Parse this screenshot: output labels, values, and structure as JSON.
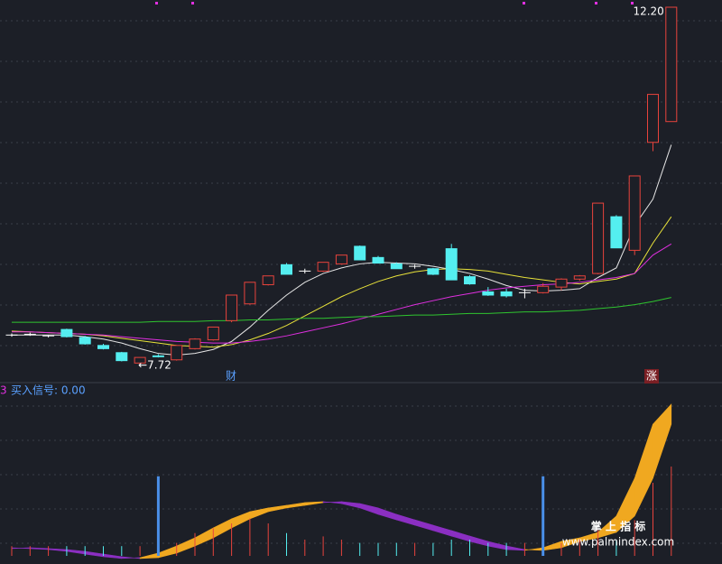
{
  "chart_data": {
    "type": "candlestick",
    "max_label": "12.20",
    "min_label": "←7.72",
    "badge_left": "财",
    "badge_right": "涨",
    "ylim": [
      7.6,
      12.2
    ],
    "up_color": "#e8433c",
    "down_color": "#54eef0",
    "doji_color": "#ffffff",
    "open": [
      8.1,
      8.11,
      8.09,
      8.17,
      8.07,
      7.97,
      7.88,
      7.75,
      7.84,
      7.79,
      7.93,
      8.04,
      8.28,
      8.49,
      8.73,
      8.98,
      8.9,
      8.9,
      8.99,
      9.21,
      9.07,
      8.99,
      8.96,
      8.93,
      9.18,
      8.83,
      8.64,
      8.64,
      8.63,
      8.63,
      8.7,
      8.8,
      8.87,
      9.58,
      9.16,
      10.51,
      10.77
    ],
    "high": [
      8.12,
      8.13,
      8.1,
      8.18,
      8.09,
      7.99,
      7.89,
      7.82,
      7.86,
      7.97,
      8.06,
      8.2,
      8.6,
      8.76,
      8.84,
      9.0,
      8.93,
      9.01,
      9.1,
      9.22,
      9.09,
      9.01,
      8.98,
      8.94,
      9.24,
      8.85,
      8.7,
      8.68,
      8.68,
      8.75,
      8.81,
      8.85,
      9.75,
      9.6,
      10.09,
      11.11,
      12.2
    ],
    "low": [
      8.08,
      8.09,
      8.07,
      8.07,
      7.98,
      7.92,
      7.77,
      7.72,
      7.82,
      7.78,
      7.92,
      8.03,
      8.26,
      8.48,
      8.72,
      8.86,
      8.87,
      8.89,
      8.98,
      9.04,
      9.0,
      8.93,
      8.93,
      8.85,
      8.79,
      8.73,
      8.59,
      8.57,
      8.56,
      8.62,
      8.66,
      8.78,
      8.86,
      9.19,
      9.1,
      10.4,
      10.77
    ],
    "close": [
      8.1,
      8.11,
      8.09,
      8.08,
      7.99,
      7.93,
      7.78,
      7.82,
      7.83,
      7.97,
      8.05,
      8.2,
      8.6,
      8.76,
      8.84,
      8.86,
      8.9,
      9.01,
      9.1,
      9.04,
      9.0,
      8.93,
      8.96,
      8.86,
      8.79,
      8.74,
      8.6,
      8.59,
      8.63,
      8.71,
      8.8,
      8.84,
      9.75,
      9.19,
      10.09,
      11.11,
      12.2
    ],
    "ma": [
      {
        "color": "#e6e6e6",
        "values": [
          8.1,
          8.1,
          8.1,
          8.1,
          8.08,
          8.05,
          8.0,
          7.93,
          7.87,
          7.85,
          7.87,
          7.92,
          8.02,
          8.2,
          8.41,
          8.6,
          8.76,
          8.87,
          8.94,
          8.99,
          9.01,
          9.0,
          8.99,
          8.96,
          8.92,
          8.87,
          8.8,
          8.72,
          8.66,
          8.65,
          8.66,
          8.68,
          8.82,
          8.94,
          9.47,
          9.8,
          10.48
        ]
      },
      {
        "color": "#e8e23a",
        "values": [
          8.15,
          8.14,
          8.13,
          8.12,
          8.11,
          8.09,
          8.06,
          8.03,
          8.0,
          7.97,
          7.96,
          7.95,
          7.98,
          8.04,
          8.12,
          8.22,
          8.34,
          8.46,
          8.58,
          8.68,
          8.77,
          8.84,
          8.89,
          8.92,
          8.93,
          8.92,
          8.9,
          8.86,
          8.82,
          8.79,
          8.76,
          8.74,
          8.77,
          8.8,
          8.87,
          9.25,
          9.58
        ]
      },
      {
        "color": "#e02fe0",
        "values": [
          8.14,
          8.14,
          8.13,
          8.12,
          8.11,
          8.1,
          8.08,
          8.06,
          8.04,
          8.02,
          8.01,
          8.0,
          8.0,
          8.02,
          8.05,
          8.09,
          8.14,
          8.19,
          8.24,
          8.3,
          8.36,
          8.42,
          8.48,
          8.53,
          8.58,
          8.62,
          8.66,
          8.69,
          8.71,
          8.73,
          8.74,
          8.76,
          8.79,
          8.82,
          8.87,
          9.1,
          9.24
        ]
      },
      {
        "color": "#2fc52f",
        "values": [
          8.26,
          8.26,
          8.26,
          8.26,
          8.26,
          8.26,
          8.26,
          8.26,
          8.27,
          8.27,
          8.27,
          8.28,
          8.28,
          8.29,
          8.29,
          8.3,
          8.31,
          8.31,
          8.32,
          8.33,
          8.33,
          8.34,
          8.35,
          8.35,
          8.36,
          8.37,
          8.37,
          8.38,
          8.39,
          8.39,
          8.4,
          8.41,
          8.43,
          8.45,
          8.48,
          8.52,
          8.57
        ]
      }
    ],
    "indicator": {
      "index_label": "3",
      "signal_label": "买入信号: 0.00",
      "ylim": [
        -5,
        100
      ],
      "rise_color": "#f0a820",
      "fall_color": "#8b2fc2",
      "buy_color": "#4a8fe8",
      "series": [
        {
          "values": [
            5.0,
            4.5,
            3.9,
            2.8,
            1.1,
            -0.5,
            -1.6,
            -1.1,
            1.7,
            6.1,
            11.1,
            17.2,
            22.8,
            27.2,
            29.5,
            31.1,
            32.8,
            33.4,
            32.2,
            29.5,
            25.6,
            22.2,
            18.9,
            15.6,
            12.2,
            8.9,
            6.1,
            3.9,
            3.4,
            5.0,
            8.9,
            11.1,
            14.5,
            24.5,
            47.8,
            81.1,
            93.4
          ]
        },
        {
          "values": [
            4.5,
            5.0,
            4.5,
            3.9,
            2.8,
            1.1,
            -0.5,
            -1.6,
            -1.1,
            1.7,
            6.1,
            11.1,
            17.2,
            22.8,
            27.2,
            29.5,
            31.1,
            32.8,
            33.4,
            32.2,
            29.5,
            25.6,
            22.2,
            18.9,
            15.6,
            12.2,
            8.9,
            6.1,
            3.9,
            3.4,
            5.0,
            8.9,
            11.1,
            14.5,
            24.5,
            47.8,
            81.1
          ]
        }
      ],
      "bars": [
        6,
        6,
        6,
        6,
        6,
        6,
        6,
        6,
        6,
        8,
        14,
        17,
        20,
        23,
        20,
        14,
        10,
        12,
        10,
        8,
        8,
        8,
        8,
        8,
        10,
        10,
        8,
        8,
        8,
        8,
        8,
        10,
        16,
        10,
        22,
        45,
        55
      ],
      "buy": [
        null,
        null,
        null,
        null,
        null,
        null,
        null,
        null,
        49,
        null,
        null,
        null,
        null,
        null,
        null,
        null,
        null,
        null,
        null,
        null,
        null,
        null,
        null,
        null,
        null,
        null,
        null,
        null,
        null,
        49,
        null,
        null,
        null,
        null,
        null,
        null,
        null
      ]
    }
  },
  "watermark": {
    "title": "掌 上 指 标",
    "url": "www.palmindex.com"
  }
}
